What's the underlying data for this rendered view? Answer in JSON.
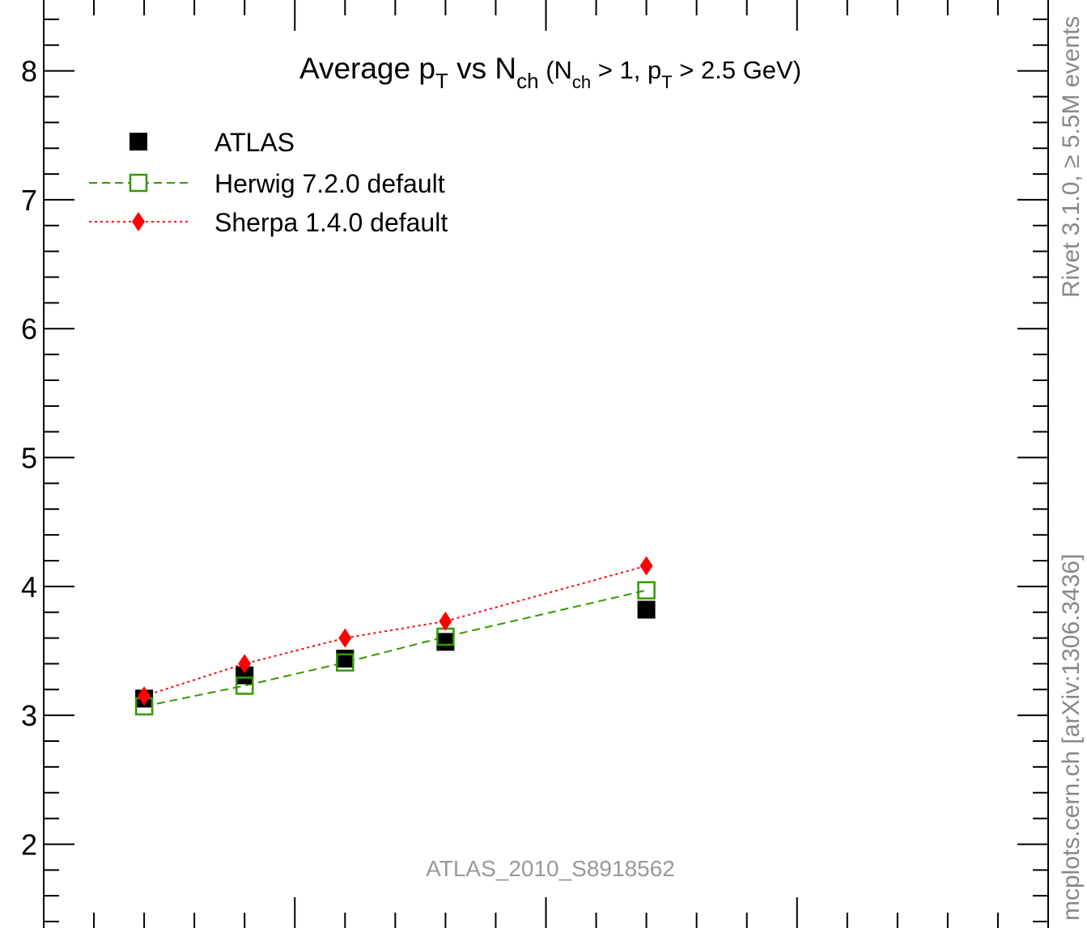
{
  "chart_data": {
    "type": "scatter",
    "title": {
      "prefix": "Average p",
      "pt_sub": "T",
      "vs": " vs N",
      "nch_sub": "ch",
      "paren_open": " (N",
      "nch_sub2": "ch",
      "mid": " > 1, p",
      "pt_sub2": "T",
      "suffix": " > 2.5 GeV)"
    },
    "xlim": [
      0,
      20
    ],
    "ylim": [
      1.35,
      8.55
    ],
    "y_ticks": [
      "2",
      "3",
      "4",
      "5",
      "6",
      "7",
      "8"
    ],
    "grid": false,
    "legend_position": "top-left",
    "series": [
      {
        "name": "ATLAS",
        "marker": "filled-square",
        "color": "#000000",
        "line": "none",
        "x": [
          2,
          4,
          6,
          8,
          12
        ],
        "y": [
          3.13,
          3.31,
          3.44,
          3.57,
          3.82
        ]
      },
      {
        "name": "Herwig 7.2.0 default",
        "marker": "open-square",
        "color": "#339900",
        "line": "dashed",
        "x": [
          2,
          4,
          6,
          8,
          12
        ],
        "y": [
          3.07,
          3.23,
          3.41,
          3.61,
          3.97
        ]
      },
      {
        "name": "Sherpa 1.4.0 default",
        "marker": "filled-diamond",
        "color": "#ff0000",
        "line": "dotted",
        "x": [
          2,
          4,
          6,
          8,
          12
        ],
        "y": [
          3.15,
          3.4,
          3.6,
          3.73,
          4.16
        ]
      }
    ],
    "annotations": {
      "analysis_id": "ATLAS_2010_S8918562",
      "side_top": "Rivet 3.1.0, ≥ 5.5M events",
      "side_bottom": "mcplots.cern.ch [arXiv:1306.3436]"
    }
  }
}
